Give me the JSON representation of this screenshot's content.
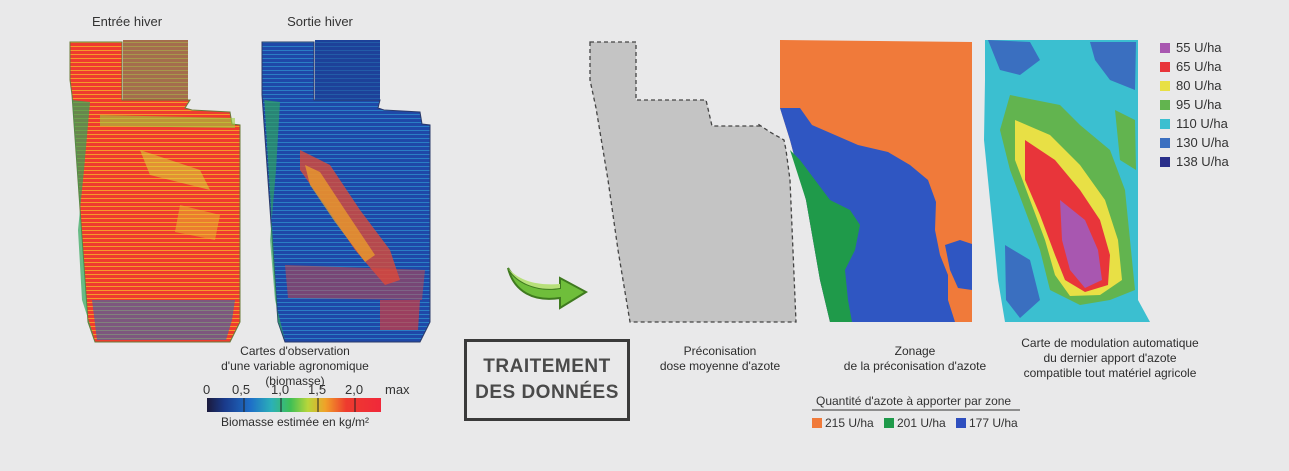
{
  "maps": {
    "entree_hiver_title": "Entrée hiver",
    "sortie_hiver_title": "Sortie hiver"
  },
  "captions": {
    "observation_line1": "Cartes d'observation",
    "observation_line2": "d'une variable agronomique (biomasse)",
    "preco_line1": "Préconisation",
    "preco_line2": "dose moyenne d'azote",
    "zonage_line1": "Zonage",
    "zonage_line2": "de la préconisation d'azote",
    "modulation_line1": "Carte de modulation automatique",
    "modulation_line2": "du dernier apport d'azote",
    "modulation_line3": "compatible tout matériel agricole"
  },
  "biomass_scale": {
    "ticks": [
      "0",
      "0,5",
      "1,0",
      "1,5",
      "2,0",
      "max"
    ],
    "label": "Biomasse estimée en kg/m²",
    "colors": [
      "#1b1a3c",
      "#1a3a8a",
      "#1e6fc8",
      "#2bb0b8",
      "#3fbf55",
      "#b8d63a",
      "#f0a128",
      "#ee3b2e",
      "#f0283a"
    ]
  },
  "treatment": {
    "line1": "TRAITEMENT",
    "line2": "DES DONNÉES"
  },
  "zone_quantity": {
    "title": "Quantité d'azote à apporter par zone",
    "items": [
      {
        "label": "215 U/ha",
        "color": "#f07a3a"
      },
      {
        "label": "201 U/ha",
        "color": "#1f9a4a"
      },
      {
        "label": "177 U/ha",
        "color": "#2f4fbf"
      }
    ]
  },
  "modulation_legend": [
    {
      "label": "55 U/ha",
      "color": "#a857b0"
    },
    {
      "label": "65 U/ha",
      "color": "#e8353a"
    },
    {
      "label": "80 U/ha",
      "color": "#e8e045"
    },
    {
      "label": "95 U/ha",
      "color": "#62b44f"
    },
    {
      "label": "110 U/ha",
      "color": "#3bbfd0"
    },
    {
      "label": "130 U/ha",
      "color": "#3a6fc0"
    },
    {
      "label": "138 U/ha",
      "color": "#2a2f8a"
    }
  ]
}
